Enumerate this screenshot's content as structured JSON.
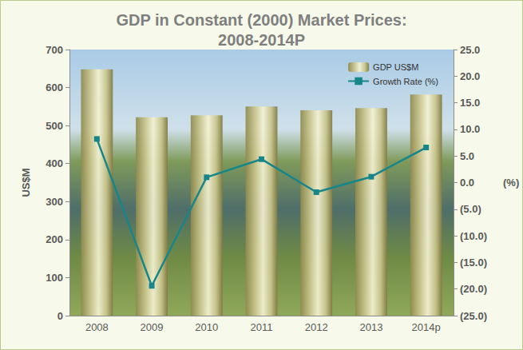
{
  "chart_data": {
    "type": "bar",
    "title": "GDP in Constant (2000) Market Prices:\n2008-2014P",
    "categories": [
      "2008",
      "2009",
      "2010",
      "2011",
      "2012",
      "2013",
      "2014p"
    ],
    "series": [
      {
        "name": "GDP US$M",
        "type": "bar",
        "color": "#c9c58c",
        "values": [
          648,
          522,
          527,
          550,
          540,
          546,
          582
        ]
      },
      {
        "name": "Growth Rate (%)",
        "type": "line",
        "color": "#17868a",
        "marker": "square",
        "line_style": "solid",
        "axis": "y2",
        "values": [
          8.2,
          -19.4,
          1.0,
          4.4,
          -1.8,
          1.1,
          6.6
        ]
      }
    ],
    "ylabel": "US$M",
    "y2label": "(%)",
    "ylim": [
      0,
      700
    ],
    "yticks": [
      0,
      100,
      200,
      300,
      400,
      500,
      600,
      700
    ],
    "y2lim": [
      -25,
      25
    ],
    "y2ticks": [
      {
        "value": -25,
        "label": "(25.0)"
      },
      {
        "value": -20,
        "label": "(20.0)"
      },
      {
        "value": -15,
        "label": "(15.0)"
      },
      {
        "value": -10,
        "label": "(10.0)"
      },
      {
        "value": -5,
        "label": "(5.0)"
      },
      {
        "value": 0,
        "label": "0.0"
      },
      {
        "value": 5,
        "label": "5.0"
      },
      {
        "value": 10,
        "label": "10.0"
      },
      {
        "value": 15,
        "label": "15.0"
      },
      {
        "value": 20,
        "label": "20.0"
      },
      {
        "value": 25,
        "label": "25.0"
      }
    ],
    "legend": "upper right",
    "grid": false
  }
}
